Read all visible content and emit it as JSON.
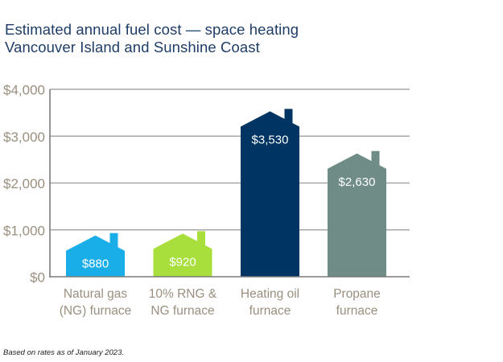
{
  "title": "Estimated annual fuel cost — space heating",
  "subtitle": "Vancouver Island and Sunshine Coast",
  "footnote": "Based on rates as of January 2023.",
  "chart_data": {
    "type": "bar",
    "title": "Estimated annual fuel cost — space heating",
    "subtitle": "Vancouver Island and Sunshine Coast",
    "xlabel": "",
    "ylabel": "",
    "categories": [
      [
        "Natural gas",
        "(NG) furnace"
      ],
      [
        "10% RNG &",
        "NG furnace"
      ],
      [
        "Heating oil",
        "furnace"
      ],
      [
        "Propane",
        "furnace"
      ]
    ],
    "values": [
      880,
      920,
      3530,
      2630
    ],
    "data_labels": [
      "$880",
      "$920",
      "$3,530",
      "$2,630"
    ],
    "colors": [
      "#1aaee8",
      "#a9df3c",
      "#003462",
      "#6f8c87"
    ],
    "ylim": [
      0,
      4000
    ],
    "yticks": [
      0,
      1000,
      2000,
      3000,
      4000
    ],
    "ytick_labels": [
      "$0",
      "$1,000",
      "$2,000",
      "$3,000",
      "$4,000"
    ],
    "grid": true,
    "legend": "none",
    "bar_shape": "house"
  }
}
